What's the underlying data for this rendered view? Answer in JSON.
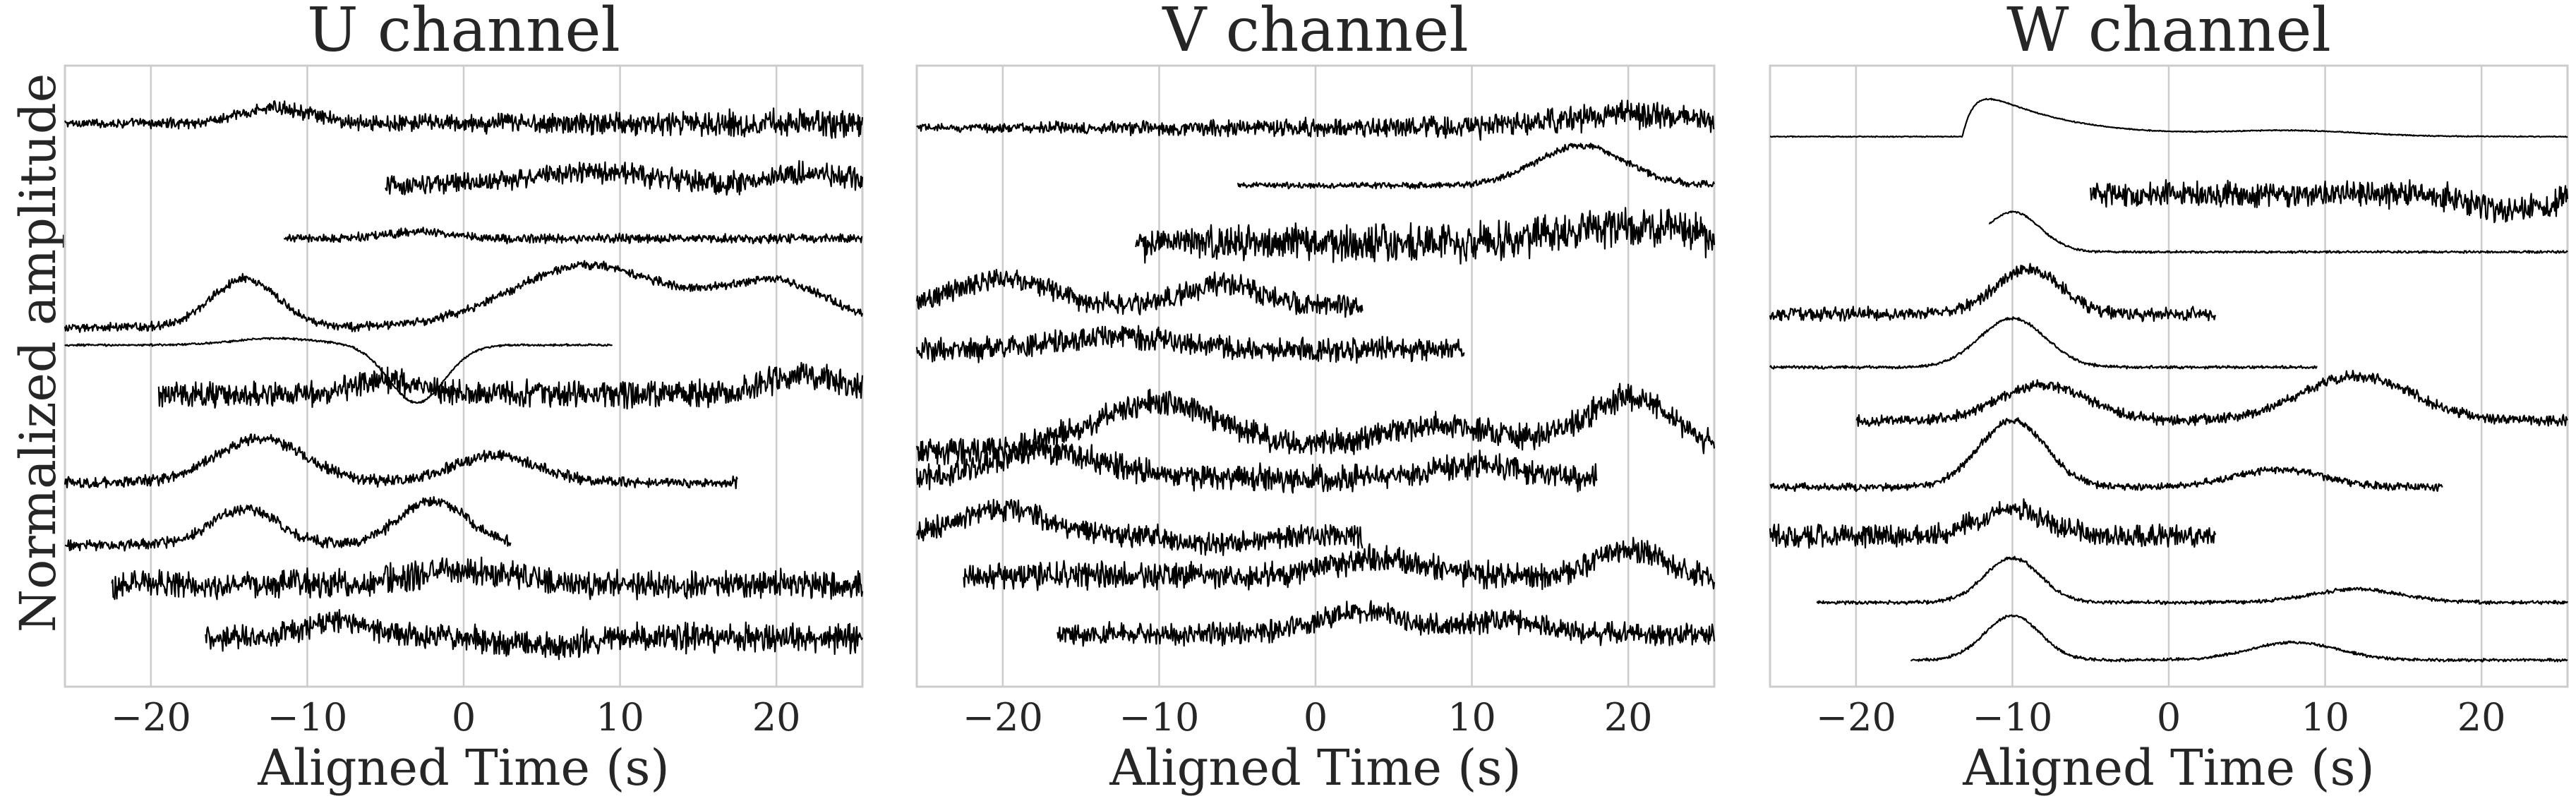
{
  "ylabel": "Normalized amplitude",
  "chart_data": [
    {
      "type": "line",
      "title": "U channel",
      "xlabel": "Aligned Time (s)",
      "xlim": [
        -25.5,
        25.5
      ],
      "xticks": [
        -20,
        -10,
        0,
        10,
        20
      ],
      "xtick_labels": [
        "−20",
        "−10",
        "0",
        "10",
        "20"
      ],
      "ylim": [
        0,
        14
      ],
      "grid": "vertical",
      "series": [
        {
          "offset": 12.7,
          "x_start": -25.5,
          "x_end": 25.5,
          "noise": 0.1,
          "noise_grow": 0.3,
          "wave": [
            [
              -12,
              3,
              0.35
            ]
          ]
        },
        {
          "offset": 11.3,
          "x_start": -5,
          "x_end": 25.5,
          "noise": 0.22,
          "noise_grow": 0.1,
          "wave": [
            [
              8,
              6,
              0.3
            ],
            [
              22,
              3,
              0.3
            ]
          ]
        },
        {
          "offset": 10.1,
          "x_start": -11.5,
          "x_end": 25.5,
          "noise": 0.12,
          "noise_grow": 0.0,
          "wave": [
            [
              -3,
              3,
              0.15
            ]
          ]
        },
        {
          "offset": 8.1,
          "x_start": -25.5,
          "x_end": 25.5,
          "noise": 0.12,
          "noise_grow": 0.0,
          "wave": [
            [
              -14,
              3,
              1.1
            ],
            [
              8,
              7,
              1.4
            ],
            [
              20,
              5,
              1.0
            ]
          ]
        },
        {
          "offset": 7.7,
          "x_start": -25.5,
          "x_end": 9.5,
          "noise": 0.03,
          "noise_grow": 0.0,
          "wave": [
            [
              -12,
              4,
              0.15
            ],
            [
              -3,
              2.5,
              -1.3
            ]
          ]
        },
        {
          "offset": 6.6,
          "x_start": -19.5,
          "x_end": 25.5,
          "noise": 0.3,
          "noise_grow": 0.1,
          "wave": [
            [
              -5,
              3,
              0.3
            ],
            [
              22,
              4,
              0.4
            ]
          ]
        },
        {
          "offset": 4.6,
          "x_start": -25.5,
          "x_end": 17.5,
          "noise": 0.15,
          "noise_grow": 0.0,
          "wave": [
            [
              -13,
              4,
              1.0
            ],
            [
              2,
              4,
              0.6
            ]
          ]
        },
        {
          "offset": 3.2,
          "x_start": -25.5,
          "x_end": 3,
          "noise": 0.15,
          "noise_grow": 0.0,
          "wave": [
            [
              -14,
              3,
              0.8
            ],
            [
              -2,
              3,
              1.0
            ]
          ]
        },
        {
          "offset": 2.3,
          "x_start": -22.5,
          "x_end": 25.5,
          "noise": 0.38,
          "noise_grow": 0.0,
          "wave": [
            [
              0,
              5,
              0.3
            ]
          ]
        },
        {
          "offset": 1.1,
          "x_start": -16.5,
          "x_end": 25.5,
          "noise": 0.28,
          "noise_grow": 0.15,
          "wave": [
            [
              -8,
              3,
              0.4
            ],
            [
              5,
              3,
              -0.2
            ]
          ]
        }
      ]
    },
    {
      "type": "line",
      "title": "V channel",
      "xlabel": "Aligned Time (s)",
      "xlim": [
        -25.5,
        25.5
      ],
      "xticks": [
        -20,
        -10,
        0,
        10,
        20
      ],
      "xtick_labels": [
        "−20",
        "−10",
        "0",
        "10",
        "20"
      ],
      "ylim": [
        0,
        14
      ],
      "grid": "vertical",
      "series": [
        {
          "offset": 12.6,
          "x_start": -25.5,
          "x_end": 25.5,
          "noise": 0.1,
          "noise_grow": 0.3,
          "wave": [
            [
              20,
              6,
              0.3
            ]
          ]
        },
        {
          "offset": 11.3,
          "x_start": -5,
          "x_end": 25.5,
          "noise": 0.05,
          "noise_grow": 0.05,
          "wave": [
            [
              17,
              4,
              0.9
            ]
          ]
        },
        {
          "offset": 10.0,
          "x_start": -11.5,
          "x_end": 25.5,
          "noise": 0.45,
          "noise_grow": 0.1,
          "wave": [
            [
              20,
              6,
              0.4
            ]
          ]
        },
        {
          "offset": 8.6,
          "x_start": -25.5,
          "x_end": 3,
          "noise": 0.3,
          "noise_grow": 0.0,
          "wave": [
            [
              -20,
              4,
              0.6
            ],
            [
              -6,
              3,
              0.5
            ]
          ]
        },
        {
          "offset": 7.6,
          "x_start": -25.5,
          "x_end": 9.5,
          "noise": 0.32,
          "noise_grow": 0.0,
          "wave": [
            [
              -13,
              5,
              0.3
            ]
          ]
        },
        {
          "offset": 5.3,
          "x_start": -25.5,
          "x_end": 25.5,
          "noise": 0.35,
          "noise_grow": 0.0,
          "wave": [
            [
              -10,
              6,
              1.1
            ],
            [
              8,
              6,
              0.6
            ],
            [
              20,
              4,
              1.2
            ]
          ]
        },
        {
          "offset": 4.7,
          "x_start": -25.5,
          "x_end": 18,
          "noise": 0.35,
          "noise_grow": 0.0,
          "wave": [
            [
              -17,
              5,
              0.6
            ],
            [
              10,
              4,
              0.3
            ]
          ]
        },
        {
          "offset": 3.4,
          "x_start": -25.5,
          "x_end": 3,
          "noise": 0.3,
          "noise_grow": 0.0,
          "wave": [
            [
              -20,
              4,
              0.6
            ],
            [
              -6,
              3,
              -0.2
            ]
          ]
        },
        {
          "offset": 2.5,
          "x_start": -22.5,
          "x_end": 25.5,
          "noise": 0.35,
          "noise_grow": 0.0,
          "wave": [
            [
              4,
              4,
              0.4
            ],
            [
              20,
              3,
              0.6
            ]
          ]
        },
        {
          "offset": 1.2,
          "x_start": -16.5,
          "x_end": 25.5,
          "noise": 0.3,
          "noise_grow": 0.0,
          "wave": [
            [
              3,
              4,
              0.5
            ],
            [
              12,
              3,
              0.3
            ]
          ]
        }
      ]
    },
    {
      "type": "line",
      "title": "W channel",
      "xlabel": "Aligned Time (s)",
      "xlim": [
        -25.5,
        25.5
      ],
      "xticks": [
        -20,
        -10,
        0,
        10,
        20
      ],
      "xtick_labels": [
        "−20",
        "−10",
        "0",
        "10",
        "20"
      ],
      "ylim": [
        0,
        14
      ],
      "grid": "vertical",
      "series": [
        {
          "offset": 12.4,
          "x_start": -25.5,
          "x_end": 25.5,
          "noise": 0.015,
          "noise_grow": 0.0,
          "step_at": -13.2,
          "decay": 5,
          "amp": 1.4,
          "wave": [
            [
              8,
              6,
              0.12
            ]
          ]
        },
        {
          "offset": 11.1,
          "x_start": -5,
          "x_end": 25.5,
          "noise": 0.28,
          "noise_grow": 0.1,
          "wave": [
            [
              22,
              3,
              -0.4
            ]
          ]
        },
        {
          "offset": 9.8,
          "x_start": -11.5,
          "x_end": 25.5,
          "noise": 0.03,
          "noise_grow": 0.0,
          "wave": [
            [
              -10,
              2.5,
              0.9
            ]
          ]
        },
        {
          "offset": 8.4,
          "x_start": -25.5,
          "x_end": 3,
          "noise": 0.18,
          "noise_grow": 0.0,
          "wave": [
            [
              -9,
              3,
              1.0
            ]
          ]
        },
        {
          "offset": 7.2,
          "x_start": -25.5,
          "x_end": 9.5,
          "noise": 0.04,
          "noise_grow": 0.0,
          "wave": [
            [
              -10,
              3,
              1.1
            ]
          ]
        },
        {
          "offset": 6.0,
          "x_start": -20,
          "x_end": 25.5,
          "noise": 0.14,
          "noise_grow": 0.0,
          "wave": [
            [
              -8,
              4,
              0.8
            ],
            [
              12,
              5,
              1.0
            ]
          ]
        },
        {
          "offset": 4.5,
          "x_start": -25.5,
          "x_end": 17.5,
          "noise": 0.1,
          "noise_grow": 0.0,
          "wave": [
            [
              -10,
              3,
              1.5
            ],
            [
              7,
              4,
              0.4
            ]
          ]
        },
        {
          "offset": 3.4,
          "x_start": -25.5,
          "x_end": 3,
          "noise": 0.3,
          "noise_grow": 0.0,
          "wave": [
            [
              -10,
              3,
              0.6
            ]
          ]
        },
        {
          "offset": 1.9,
          "x_start": -22.5,
          "x_end": 25.5,
          "noise": 0.05,
          "noise_grow": 0.0,
          "wave": [
            [
              -10,
              2.5,
              1.0
            ],
            [
              12,
              4,
              0.3
            ]
          ]
        },
        {
          "offset": 0.6,
          "x_start": -16.5,
          "x_end": 25.5,
          "noise": 0.04,
          "noise_grow": 0.0,
          "wave": [
            [
              -10,
              2.5,
              1.0
            ],
            [
              8,
              4,
              0.4
            ]
          ]
        }
      ]
    }
  ]
}
